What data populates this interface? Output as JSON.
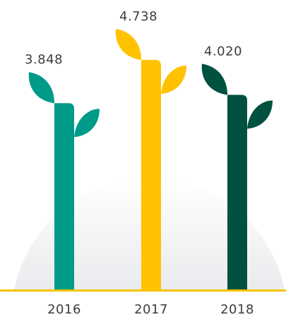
{
  "chart_data": {
    "type": "bar",
    "categories": [
      "2016",
      "2017",
      "2018"
    ],
    "values": [
      3.848,
      4.738,
      4.02
    ],
    "value_labels": [
      "3.848",
      "4.738",
      "4.020"
    ],
    "ylim": [
      0,
      5.1
    ],
    "colors": [
      "#009B88",
      "#FFC200",
      "#00513F"
    ],
    "baseline_color": "#F5C400",
    "grid": false,
    "legend": "none"
  }
}
